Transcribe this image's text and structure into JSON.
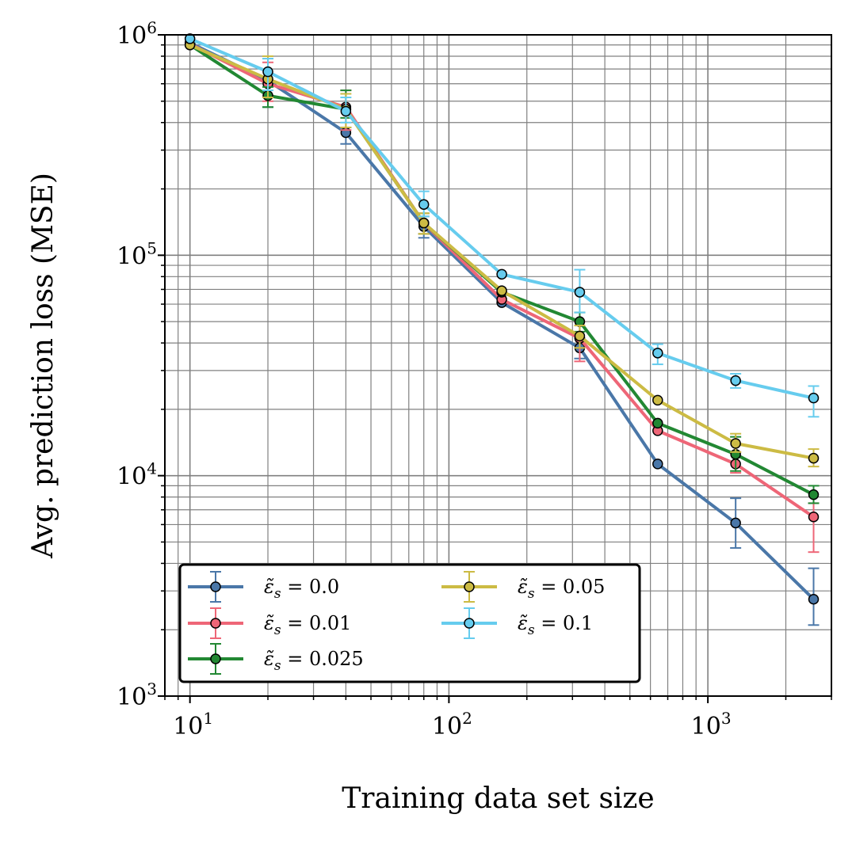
{
  "chart_data": {
    "type": "line",
    "xscale": "log",
    "yscale": "log",
    "xlabel": "Training data set size",
    "ylabel": "Avg. prediction loss (MSE)",
    "xlim": [
      8,
      3000
    ],
    "ylim": [
      1000,
      1000000
    ],
    "x_ticks": [
      {
        "value": 10,
        "base": "10",
        "exp": "1"
      },
      {
        "value": 100,
        "base": "10",
        "exp": "2"
      },
      {
        "value": 1000,
        "base": "10",
        "exp": "3"
      }
    ],
    "y_ticks": [
      {
        "value": 1000,
        "base": "10",
        "exp": "3"
      },
      {
        "value": 10000,
        "base": "10",
        "exp": "4"
      },
      {
        "value": 100000,
        "base": "10",
        "exp": "5"
      },
      {
        "value": 1000000,
        "base": "10",
        "exp": "6"
      }
    ],
    "grid": true,
    "legend_position": "lower-left",
    "x": [
      10,
      20,
      40,
      80,
      160,
      320,
      640,
      1280,
      2560
    ],
    "series": [
      {
        "name": "ε̃s = 0.0",
        "label_sub": "s",
        "label_value": "0.0",
        "color": "#4A77A8",
        "values": [
          920000,
          620000,
          360000,
          135000,
          61000,
          38000,
          11300,
          6100,
          2750
        ],
        "err_low": [
          null,
          470000,
          320000,
          120000,
          null,
          34000,
          null,
          4700,
          2100
        ],
        "err_high": [
          null,
          780000,
          380000,
          150000,
          null,
          42000,
          null,
          7900,
          3800
        ]
      },
      {
        "name": "ε̃s = 0.01",
        "label_sub": "s",
        "label_value": "0.01",
        "color": "#EE6677",
        "values": [
          910000,
          600000,
          470000,
          140000,
          63000,
          42000,
          16000,
          11300,
          6500
        ],
        "err_low": [
          null,
          500000,
          370000,
          125000,
          null,
          33000,
          null,
          10300,
          4500
        ],
        "err_high": [
          null,
          750000,
          560000,
          155000,
          null,
          50000,
          null,
          12800,
          7500
        ]
      },
      {
        "name": "ε̃s = 0.025",
        "label_sub": "s",
        "label_value": "0.025",
        "color": "#228833",
        "values": [
          900000,
          530000,
          460000,
          140000,
          68000,
          50000,
          17300,
          12500,
          8200
        ],
        "err_low": [
          null,
          470000,
          420000,
          125000,
          null,
          45000,
          null,
          10500,
          7500
        ],
        "err_high": [
          null,
          580000,
          560000,
          155000,
          null,
          55000,
          null,
          15000,
          9000
        ]
      },
      {
        "name": "ε̃s = 0.05",
        "label_sub": "s",
        "label_value": "0.05",
        "color": "#CCBB44",
        "values": [
          900000,
          630000,
          460000,
          140000,
          69000,
          43000,
          22000,
          14000,
          12000
        ],
        "err_low": [
          null,
          520000,
          380000,
          125000,
          null,
          38000,
          null,
          12800,
          11000
        ],
        "err_high": [
          null,
          800000,
          540000,
          155000,
          null,
          48000,
          null,
          15500,
          13200
        ]
      },
      {
        "name": "ε̃s = 0.1",
        "label_sub": "s",
        "label_value": "0.1",
        "color": "#66CCEE",
        "values": [
          960000,
          680000,
          450000,
          170000,
          82000,
          68000,
          36000,
          27000,
          22500
        ],
        "err_low": [
          null,
          560000,
          400000,
          150000,
          null,
          55000,
          32000,
          25000,
          18500
        ],
        "err_high": [
          null,
          780000,
          520000,
          195000,
          null,
          86000,
          39500,
          29000,
          25500
        ]
      }
    ],
    "legend_prefix": "ε̃",
    "legend_equals": "="
  }
}
